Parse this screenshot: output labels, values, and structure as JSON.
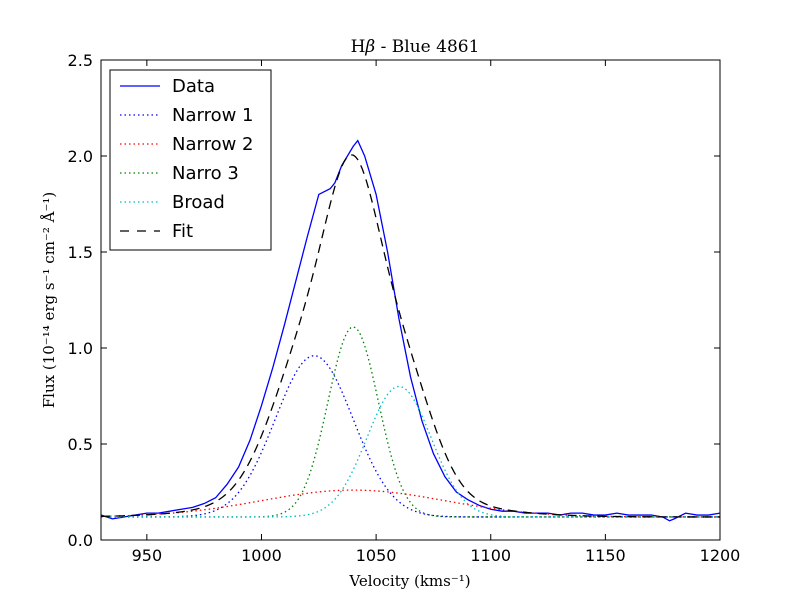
{
  "chart_data": {
    "type": "line",
    "title": "Hβ - Blue 4861",
    "xlabel": "Velocity (kms⁻¹)",
    "ylabel": "Flux (10⁻¹⁴ erg s⁻¹ cm⁻² Å⁻¹)",
    "xlim": [
      930,
      1200
    ],
    "ylim": [
      0.0,
      2.5
    ],
    "xticks": [
      950,
      1000,
      1050,
      1100,
      1150,
      1200
    ],
    "xtick_labels": [
      "950",
      "1000",
      "1050",
      "1100",
      "1150",
      "1200"
    ],
    "yticks": [
      0.0,
      0.5,
      1.0,
      1.5,
      2.0,
      2.5
    ],
    "ytick_labels": [
      "0.0",
      "0.5",
      "1.0",
      "1.5",
      "2.0",
      "2.5"
    ],
    "grid": false,
    "legend_position": "top-left",
    "series": [
      {
        "name": "Data",
        "style": "solid",
        "color": "#0000ff",
        "x": [
          930,
          935,
          940,
          945,
          950,
          955,
          960,
          965,
          970,
          975,
          980,
          985,
          990,
          995,
          1000,
          1005,
          1010,
          1015,
          1020,
          1025,
          1030,
          1032,
          1035,
          1040,
          1042,
          1045,
          1050,
          1055,
          1060,
          1065,
          1070,
          1075,
          1080,
          1085,
          1090,
          1095,
          1100,
          1105,
          1110,
          1115,
          1120,
          1125,
          1130,
          1135,
          1140,
          1145,
          1150,
          1155,
          1160,
          1165,
          1170,
          1175,
          1178,
          1180,
          1185,
          1190,
          1195,
          1200
        ],
        "y": [
          0.13,
          0.11,
          0.12,
          0.13,
          0.14,
          0.14,
          0.15,
          0.16,
          0.17,
          0.19,
          0.22,
          0.29,
          0.38,
          0.52,
          0.7,
          0.9,
          1.12,
          1.35,
          1.58,
          1.8,
          1.83,
          1.86,
          1.95,
          2.05,
          2.08,
          2.0,
          1.8,
          1.5,
          1.15,
          0.85,
          0.62,
          0.45,
          0.33,
          0.25,
          0.21,
          0.18,
          0.16,
          0.15,
          0.15,
          0.14,
          0.14,
          0.14,
          0.13,
          0.14,
          0.14,
          0.13,
          0.13,
          0.14,
          0.13,
          0.13,
          0.13,
          0.12,
          0.1,
          0.11,
          0.14,
          0.13,
          0.13,
          0.14
        ]
      },
      {
        "name": "Narrow 1",
        "style": "dotted",
        "color": "#0000ff",
        "baseline": 0.12,
        "amplitude": 0.84,
        "center": 1023,
        "sigma": 17
      },
      {
        "name": "Narrow 2",
        "style": "dotted",
        "color": "#ff0000",
        "baseline": 0.12,
        "amplitude": 0.14,
        "center": 1040,
        "sigma": 40
      },
      {
        "name": "Narro 3",
        "style": "dotted",
        "color": "#008000",
        "baseline": 0.12,
        "amplitude": 0.99,
        "center": 1040,
        "sigma": 11
      },
      {
        "name": "Broad",
        "style": "dotted",
        "color": "#00bfbf",
        "baseline": 0.12,
        "amplitude": 0.68,
        "center": 1060,
        "sigma": 14
      },
      {
        "name": "Fit",
        "style": "dashed",
        "color": "#000000",
        "sum_of": [
          "Narrow 1",
          "Narrow 2",
          "Narro 3",
          "Broad"
        ],
        "baseline": 0.12
      }
    ]
  }
}
